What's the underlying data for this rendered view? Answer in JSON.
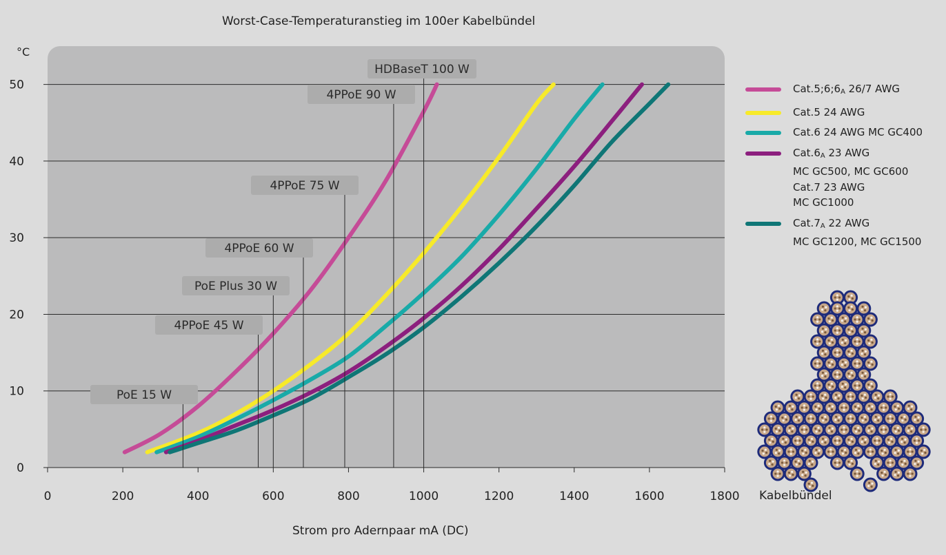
{
  "chart_data": {
    "type": "line",
    "title": "Worst-Case-Temperaturanstieg im 100er Kabelbündel",
    "xlabel": "Strom pro Adernpaar mA (DC)",
    "ylabel": "°C",
    "xlim": [
      0,
      1800
    ],
    "ylim": [
      0,
      55
    ],
    "x_ticks": [
      0,
      200,
      400,
      600,
      800,
      1000,
      1200,
      1400,
      1600,
      1800
    ],
    "y_ticks": [
      0,
      10,
      20,
      30,
      40,
      50
    ],
    "grid": "horizontal",
    "legend_position": "right",
    "series": [
      {
        "name": "Cat.5;6;6A 26/7 AWG",
        "legend_lines": [
          "Cat.5;6;6|A|26/7 AWG"
        ],
        "color": "#c54b97",
        "points": [
          [
            205,
            2
          ],
          [
            300,
            4.4
          ],
          [
            400,
            8
          ],
          [
            500,
            12.5
          ],
          [
            600,
            17.5
          ],
          [
            700,
            23.2
          ],
          [
            800,
            30
          ],
          [
            900,
            37.5
          ],
          [
            1000,
            46.5
          ],
          [
            1035,
            50
          ]
        ]
      },
      {
        "name": "Cat.5 24 AWG",
        "legend_lines": [
          "Cat.5 24 AWG"
        ],
        "color": "#f7ea29",
        "points": [
          [
            265,
            2
          ],
          [
            400,
            4.5
          ],
          [
            500,
            7
          ],
          [
            600,
            10
          ],
          [
            700,
            13.5
          ],
          [
            800,
            17.5
          ],
          [
            900,
            22.5
          ],
          [
            1000,
            28
          ],
          [
            1100,
            34
          ],
          [
            1200,
            40.5
          ],
          [
            1300,
            47.5
          ],
          [
            1345,
            50
          ]
        ]
      },
      {
        "name": "Cat.6 24 AWG MC GC400",
        "legend_lines": [
          "Cat.6 24 AWG MC GC400"
        ],
        "color": "#19aaa8",
        "points": [
          [
            290,
            2
          ],
          [
            400,
            4
          ],
          [
            500,
            6.3
          ],
          [
            600,
            8.8
          ],
          [
            700,
            11.5
          ],
          [
            800,
            14.5
          ],
          [
            900,
            18.5
          ],
          [
            1000,
            22.8
          ],
          [
            1100,
            27.5
          ],
          [
            1200,
            33
          ],
          [
            1300,
            39
          ],
          [
            1400,
            45.5
          ],
          [
            1475,
            50
          ]
        ]
      },
      {
        "name": "Cat.6A 23 AWG MC GC500, MC GC600 Cat.7 23 AWG MC GC1000",
        "legend_lines": [
          "Cat.6|A|23 AWG",
          "MC GC500,  MC GC600",
          "Cat.7 23 AWG",
          "MC GC1000"
        ],
        "color": "#8c1f7e",
        "points": [
          [
            315,
            2
          ],
          [
            400,
            3.5
          ],
          [
            500,
            5.5
          ],
          [
            600,
            7.5
          ],
          [
            700,
            9.8
          ],
          [
            800,
            12.5
          ],
          [
            900,
            15.8
          ],
          [
            1000,
            19.5
          ],
          [
            1100,
            23.7
          ],
          [
            1200,
            28.5
          ],
          [
            1300,
            33.8
          ],
          [
            1400,
            39.3
          ],
          [
            1500,
            45.2
          ],
          [
            1580,
            50
          ]
        ]
      },
      {
        "name": "Cat.7A 22 AWG MC GC1200, MC GC1500",
        "legend_lines": [
          "Cat.7|A|22 AWG",
          "MC GC1200, MC GC1500"
        ],
        "color": "#0f7676",
        "points": [
          [
            325,
            2
          ],
          [
            400,
            3.2
          ],
          [
            500,
            4.8
          ],
          [
            600,
            6.8
          ],
          [
            700,
            9
          ],
          [
            800,
            11.8
          ],
          [
            900,
            14.8
          ],
          [
            1000,
            18.3
          ],
          [
            1100,
            22.3
          ],
          [
            1200,
            26.7
          ],
          [
            1300,
            31.5
          ],
          [
            1400,
            36.8
          ],
          [
            1500,
            42.5
          ],
          [
            1600,
            47.5
          ],
          [
            1650,
            50
          ]
        ]
      }
    ],
    "annotations": [
      {
        "label": "PoE 15 W",
        "x": 360
      },
      {
        "label": "4PPoE 45 W",
        "x": 560
      },
      {
        "label": "PoE Plus 30 W",
        "x": 600
      },
      {
        "label": "4PPoE 60 W",
        "x": 680
      },
      {
        "label": "4PPoE 75 W",
        "x": 790
      },
      {
        "label": "4PPoE 90 W",
        "x": 920
      },
      {
        "label": "HDBaseT 100 W",
        "x": 1000
      }
    ]
  },
  "bundle_label": "Kabelbündel",
  "colors": {
    "background": "#dcdcdc",
    "plot_area": "#bbbbbc",
    "annotation_box": "#acacac",
    "bundle_jacket": "#1e2b7a",
    "bundle_core": "#c8a88a"
  }
}
